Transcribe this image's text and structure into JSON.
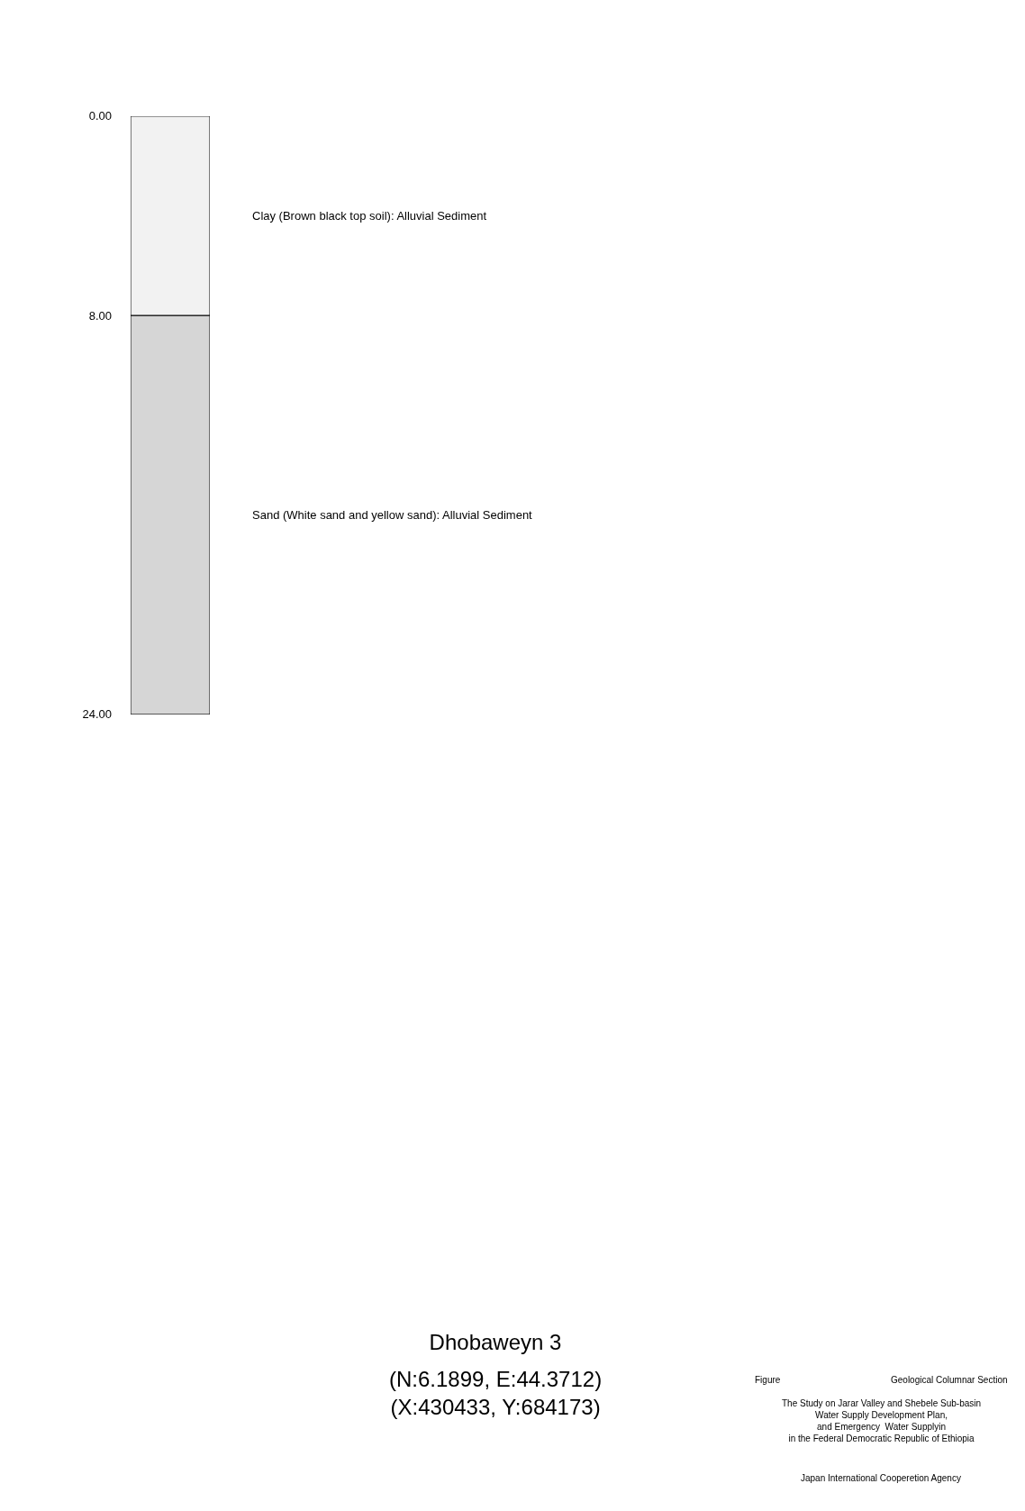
{
  "chart_data": {
    "type": "bar",
    "stacked": true,
    "title": "Dhobaweyn 3",
    "subtitle": "(N:6.1899, E:44.3712)\n(X:430433, Y:684173)",
    "categories": [
      null
    ],
    "series": [
      {
        "name": "Clay (Brown black top soil): Alluvial Sediment",
        "color": "#f2f2f2",
        "values": [
          8
        ]
      },
      {
        "name": "Sand (White sand and yellow sand): Alluvial Sediment",
        "color": "#d6d6d6",
        "values": [
          16
        ]
      }
    ],
    "ylim": [
      24,
      0
    ],
    "yticks": [
      {
        "value": 0,
        "label": "0.00"
      },
      {
        "value": 8,
        "label": "8.00"
      },
      {
        "value": 24,
        "label": "24.00"
      }
    ],
    "tick_labels": "y",
    "annotations": [
      "Figure",
      "Geological Columnar Section",
      "The Study on Jarar Valley and Shebele Sub-basin\nWater Supply Development Plan,\nand Emergency  Water Supplyin\nin the Federal Democratic Republic of Ethiopia",
      "Japan International Cooperetion Agency"
    ]
  }
}
